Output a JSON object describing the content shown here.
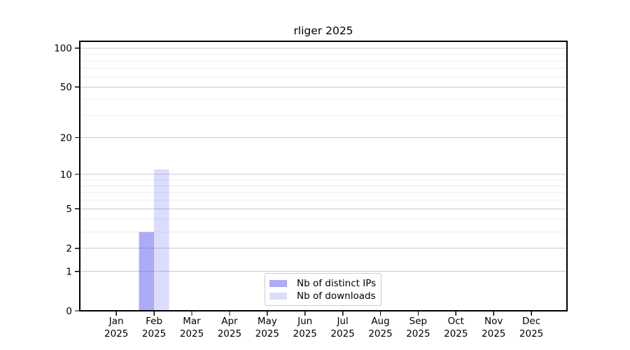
{
  "chart_data": {
    "type": "bar",
    "title": "rliger 2025",
    "months": [
      "Jan",
      "Feb",
      "Mar",
      "Apr",
      "May",
      "Jun",
      "Jul",
      "Aug",
      "Sep",
      "Oct",
      "Nov",
      "Dec"
    ],
    "year": "2025",
    "series": [
      {
        "name": "Nb of distinct IPs",
        "color": "rgba(102,102,240,0.55)",
        "values": [
          0,
          3,
          0,
          0,
          0,
          0,
          0,
          0,
          0,
          0,
          0,
          0
        ]
      },
      {
        "name": "Nb of downloads",
        "color": "rgba(102,102,240,0.23)",
        "values": [
          0,
          11,
          0,
          0,
          0,
          0,
          0,
          0,
          0,
          0,
          0,
          0
        ]
      }
    ],
    "y_ticks": [
      0,
      1,
      2,
      5,
      10,
      20,
      50,
      100
    ],
    "y_minor_ticks": [
      3,
      4,
      6,
      7,
      8,
      9,
      30,
      40,
      60,
      70,
      80,
      90
    ],
    "scale": "log1p",
    "ylim": [
      0,
      113
    ],
    "grid": true,
    "legend_position": "lower center",
    "colors": {
      "background": "#ffffff",
      "axis": "#000000",
      "text": "#000000",
      "major_grid": "#c8c8c8",
      "minor_grid": "#ececec"
    }
  }
}
